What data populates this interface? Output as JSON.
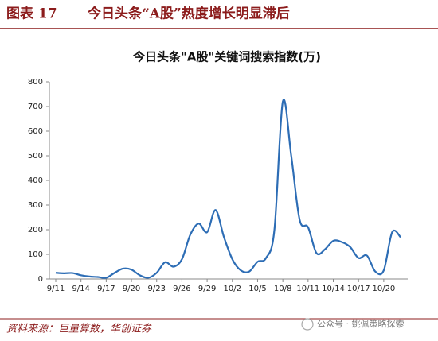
{
  "header": {
    "figure": "图表 17",
    "title": "今日头条“A股”热度增长明显滞后"
  },
  "chart_data": {
    "type": "line",
    "title": "今日头条\"A股\"关键词搜索指数(万)",
    "categories": [
      "9/11",
      null,
      null,
      "9/14",
      null,
      null,
      "9/17",
      null,
      null,
      "9/20",
      null,
      null,
      "9/23",
      null,
      null,
      "9/26",
      null,
      null,
      "9/29",
      null,
      null,
      "10/2",
      null,
      null,
      "10/5",
      null,
      null,
      "10/8",
      null,
      null,
      "10/11",
      null,
      null,
      "10/14",
      null,
      null,
      "10/17",
      null,
      null,
      "10/20",
      null,
      null
    ],
    "series": [
      {
        "name": "今日头条\"A股\"关键词搜索指数",
        "color": "#2d6db5",
        "values": [
          25,
          23,
          24,
          15,
          10,
          8,
          5,
          25,
          42,
          38,
          15,
          5,
          25,
          68,
          50,
          80,
          180,
          225,
          190,
          280,
          170,
          80,
          35,
          30,
          70,
          85,
          200,
          720,
          500,
          240,
          210,
          105,
          120,
          155,
          150,
          130,
          85,
          95,
          30,
          35,
          190,
          170
        ]
      }
    ],
    "ylim": [
      0,
      800
    ],
    "yticks": [
      0,
      100,
      200,
      300,
      400,
      500,
      600,
      700,
      800
    ]
  },
  "footer": {
    "source": "资料来源：巨量算数，华创证券",
    "watermark": "公众号 · 姚佩策略探索"
  }
}
